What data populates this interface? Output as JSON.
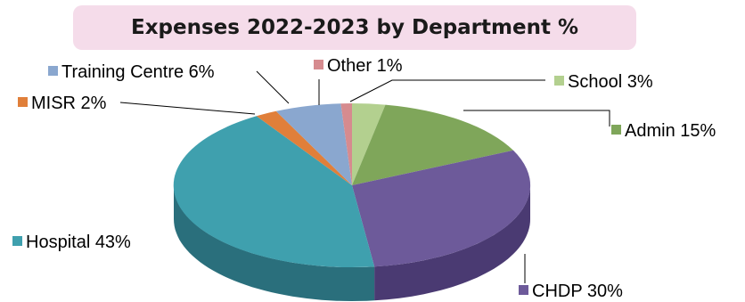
{
  "chart_data": {
    "type": "pie",
    "title": "Expenses 2022-2023  by Department %",
    "slices": [
      {
        "name": "School",
        "label": "School 3%",
        "value": 3,
        "color": "#b3d08f",
        "side": "#8aa66a"
      },
      {
        "name": "Admin",
        "label": "Admin 15%",
        "value": 15,
        "color": "#7fa65a",
        "side": "#5d7f3e"
      },
      {
        "name": "CHDP",
        "label": "CHDP 30%",
        "value": 30,
        "color": "#6d5a9a",
        "side": "#4a3a72"
      },
      {
        "name": "Hospital",
        "label": "Hospital 43%",
        "value": 43,
        "color": "#3fa0ae",
        "side": "#2a6f7c"
      },
      {
        "name": "MISR",
        "label": "MISR 2%",
        "value": 2,
        "color": "#e07f3a",
        "side": "#a85a22"
      },
      {
        "name": "Training Centre",
        "label": "Training Centre 6%",
        "value": 6,
        "color": "#8aa7cf",
        "side": "#5c7aa5"
      },
      {
        "name": "Other",
        "label": "Other 1%",
        "value": 1,
        "color": "#d68b8f",
        "side": "#a05e62"
      }
    ],
    "legend": "labels-outside-with-leaders",
    "style": "3d-pie"
  }
}
